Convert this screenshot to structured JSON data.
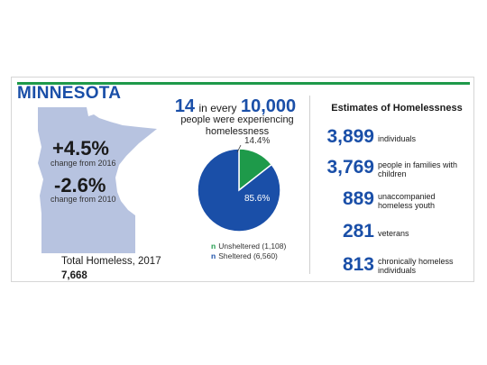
{
  "header": {
    "state": "MINNESOTA"
  },
  "changes": [
    {
      "value": "+4.5%",
      "label": "change from 2016"
    },
    {
      "value": "-2.6%",
      "label": "change from 2010"
    }
  ],
  "total": {
    "label": "Total Homeless, 2017",
    "value": "7,668"
  },
  "rate": {
    "num": "14",
    "mid": "in every",
    "den": "10,000",
    "description": "people were experiencing homelessness"
  },
  "estimates": {
    "title": "Estimates of Homelessness",
    "rows": [
      {
        "value": "3,899",
        "label": "individuals"
      },
      {
        "value": "3,769",
        "label": "people in families with children"
      },
      {
        "value": "889",
        "label": "unaccompanied homeless youth"
      },
      {
        "value": "281",
        "label": "veterans"
      },
      {
        "value": "813",
        "label": "chronically homeless individuals"
      }
    ]
  },
  "colors": {
    "blue": "#1a4fa8",
    "green": "#1e9a4a",
    "map": "#b7c3e0"
  },
  "icons": {
    "legend_marker": "n"
  },
  "chart_data": {
    "type": "pie",
    "slices": [
      {
        "name": "Unsheltered (1,108)",
        "value": 14.4,
        "label": "14.4%",
        "color": "#1e9a4a"
      },
      {
        "name": "Sheltered (6,560)",
        "value": 85.6,
        "label": "85.6%",
        "color": "#1a4fa8"
      }
    ]
  }
}
